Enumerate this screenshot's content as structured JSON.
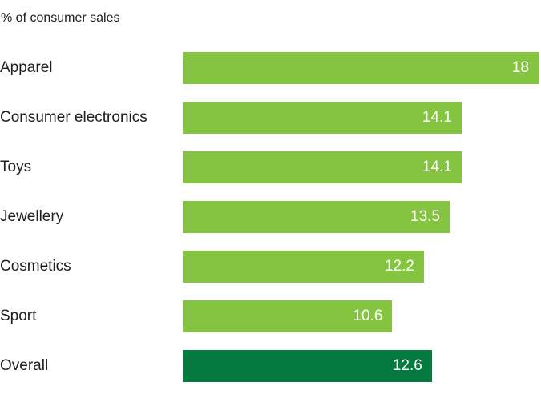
{
  "chart_data": {
    "type": "bar",
    "orientation": "horizontal",
    "title": "% of consumer sales",
    "categories": [
      "Apparel",
      "Consumer electronics",
      "Toys",
      "Jewellery",
      "Cosmetics",
      "Sport",
      "Overall"
    ],
    "values": [
      18,
      14.1,
      14.1,
      13.5,
      12.2,
      10.6,
      12.6
    ],
    "value_labels": [
      "18",
      "14.1",
      "14.1",
      "13.5",
      "12.2",
      "10.6",
      "12.6"
    ],
    "xlim": [
      0,
      18
    ],
    "grid": false,
    "legend": "none",
    "value_label_position": "inside-end",
    "bar_colors": [
      "#85C441",
      "#85C441",
      "#85C441",
      "#85C441",
      "#85C441",
      "#85C441",
      "#047A40"
    ],
    "colors": {
      "bar_light": "#85C441",
      "bar_dark": "#047A40",
      "value_text": "#FFFFFF",
      "label_text": "#1D1D1B",
      "background": "#FFFFFF"
    }
  }
}
